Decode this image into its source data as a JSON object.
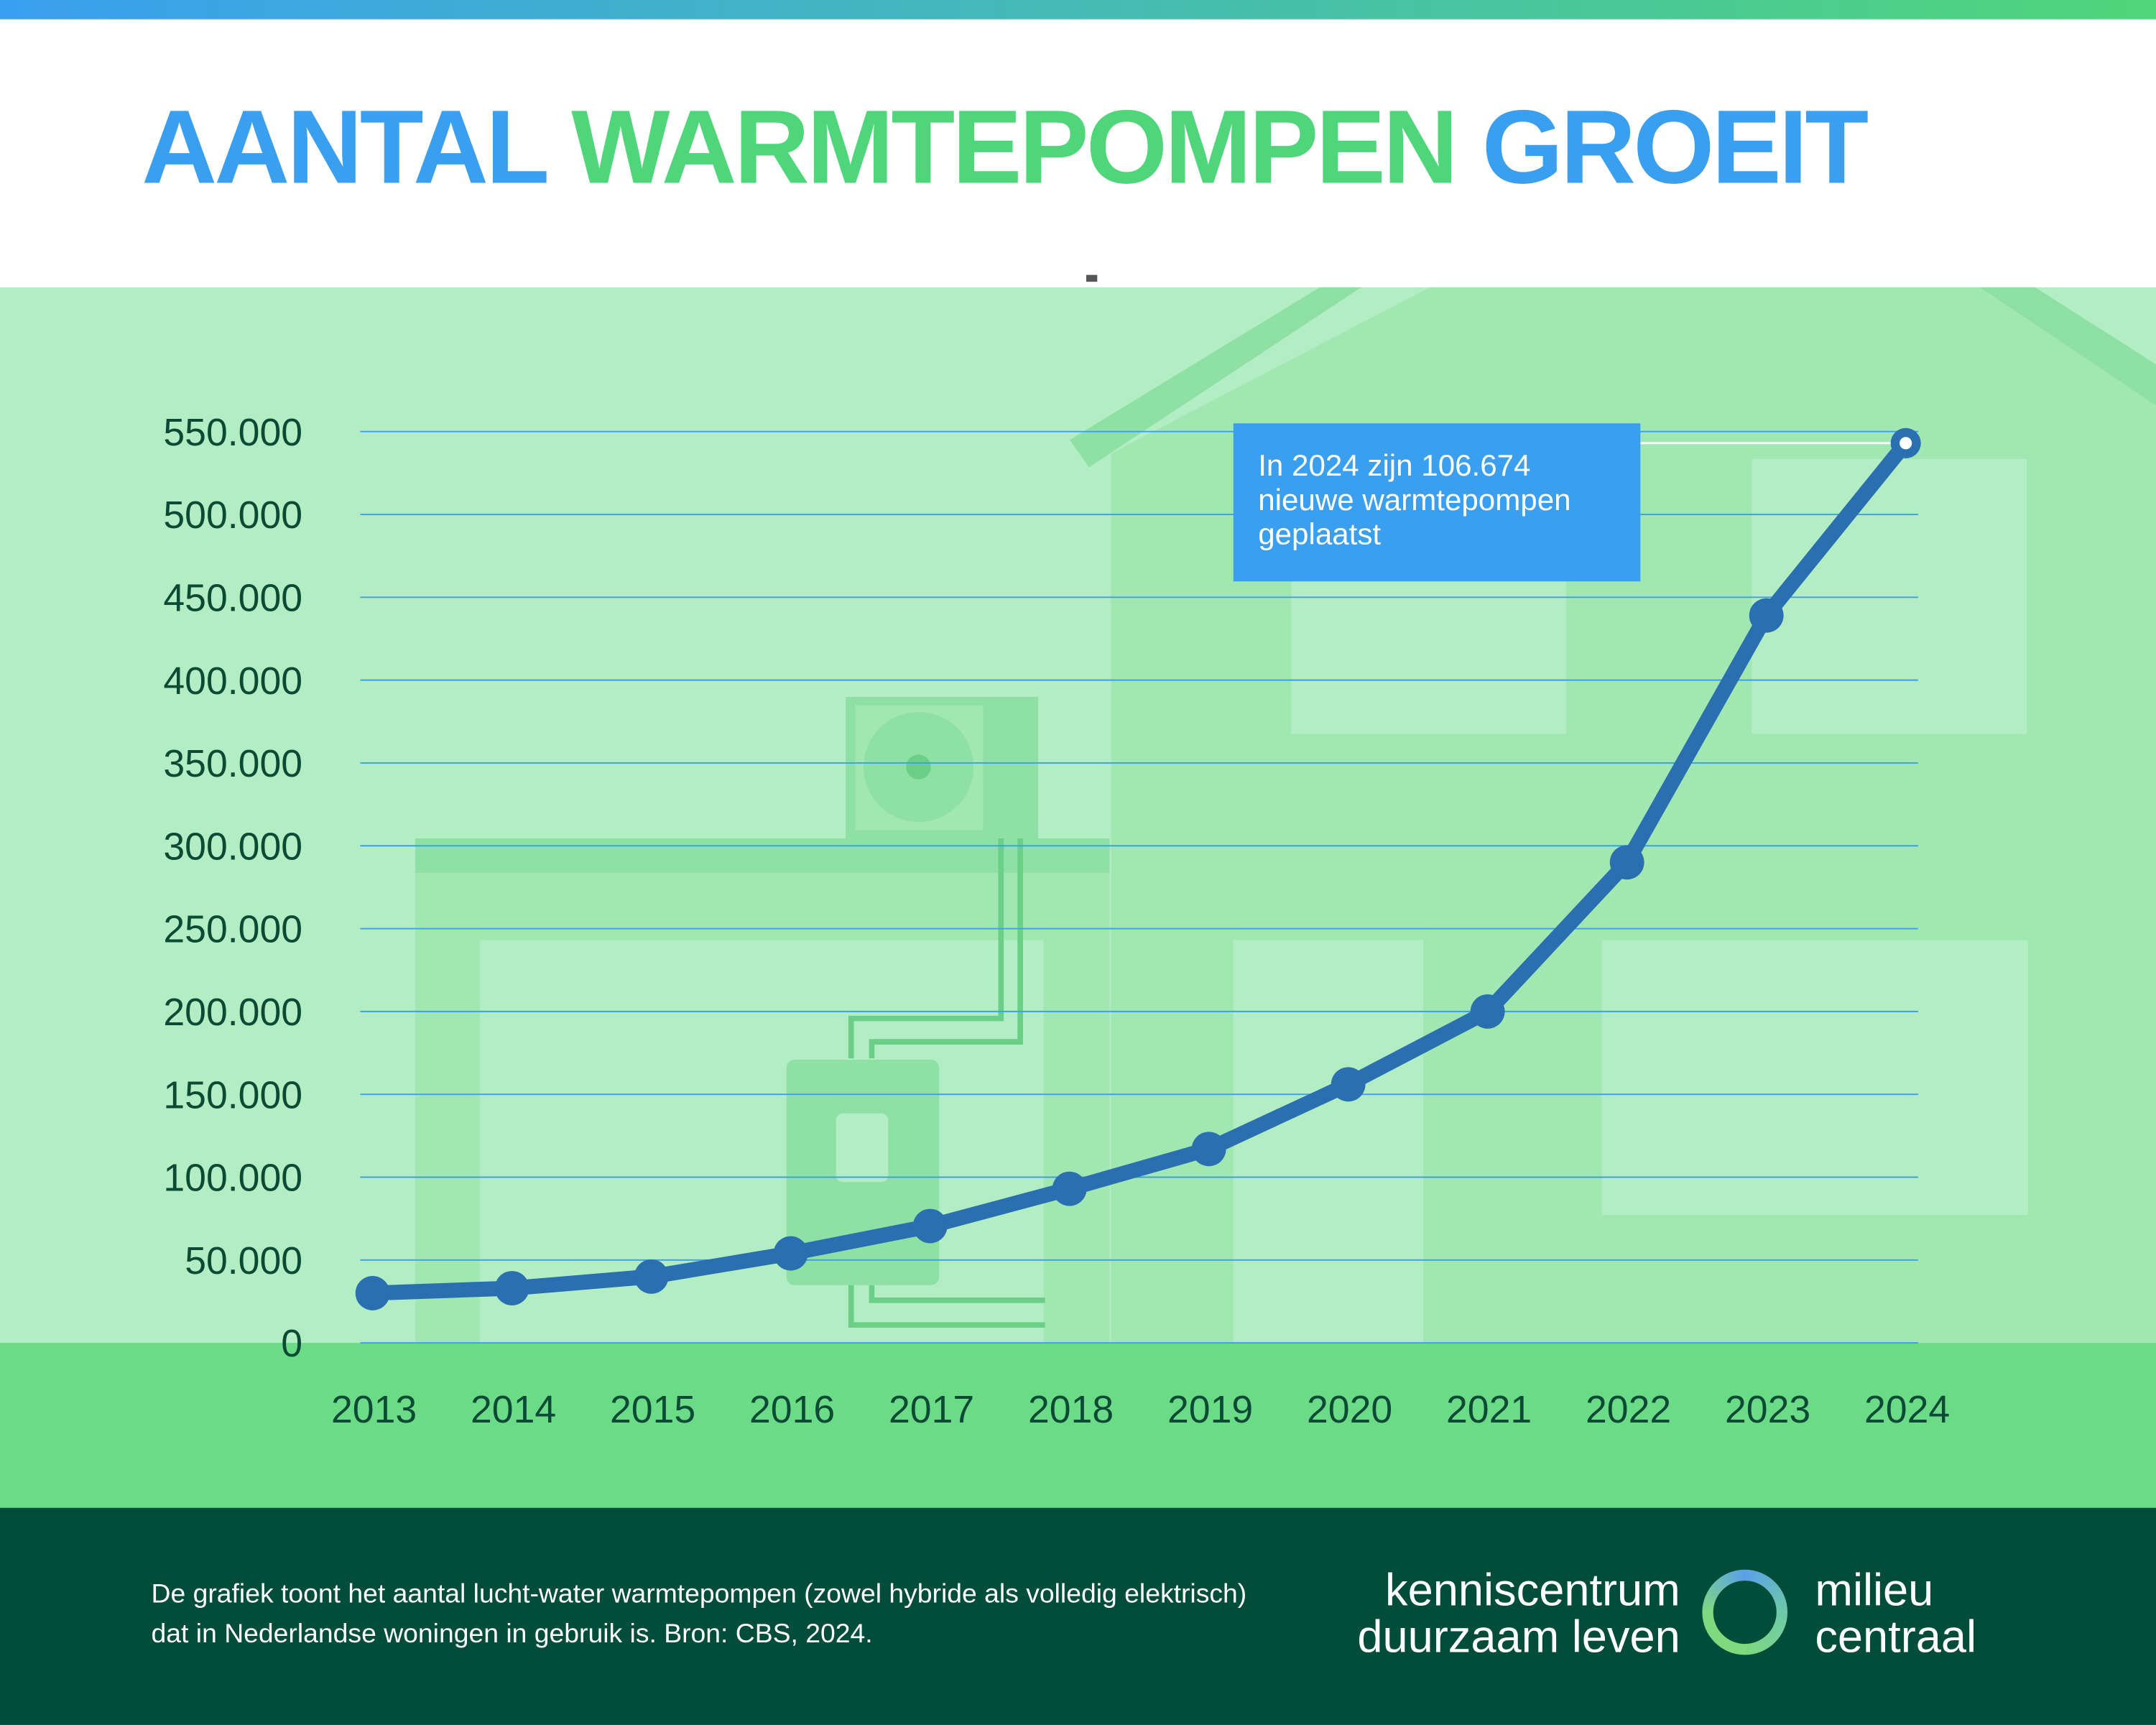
{
  "title": {
    "part1": "AANTAL",
    "part2": "WARMTEPOMPEN",
    "part3": "GROEIT"
  },
  "colors": {
    "blue": "#3b9ff0",
    "green": "#4fd67a",
    "line": "#2a6fb0",
    "footer": "#024d3a"
  },
  "callout": {
    "line1": "In 2024 zijn 106.674",
    "line2": "nieuwe warmtepompen",
    "line3": "geplaatst"
  },
  "footer": {
    "text": "De grafiek toont het aantal lucht-water warmtepompen (zowel hybride als volledig elektrisch) dat in Nederlandse woningen in gebruik is. Bron: CBS, 2024.",
    "logo_left_1": "kenniscentrum",
    "logo_left_2": "duurzaam leven",
    "logo_right_1": "milieu",
    "logo_right_2": "centraal"
  },
  "chart_data": {
    "type": "line",
    "title": "AANTAL WARMTEPOMPEN GROEIT",
    "xlabel": "",
    "ylabel": "",
    "categories": [
      "2013",
      "2014",
      "2015",
      "2016",
      "2017",
      "2018",
      "2019",
      "2020",
      "2021",
      "2022",
      "2023",
      "2024"
    ],
    "values": [
      30000,
      33000,
      40000,
      54000,
      70500,
      93000,
      117000,
      156000,
      200000,
      290000,
      439000,
      543000
    ],
    "ylim": [
      0,
      550000
    ],
    "yticks": [
      0,
      50000,
      100000,
      150000,
      200000,
      250000,
      300000,
      350000,
      400000,
      450000,
      500000,
      550000
    ],
    "ytick_labels": [
      "0",
      "50.000",
      "100.000",
      "150.000",
      "200.000",
      "250.000",
      "300.000",
      "350.000",
      "400.000",
      "450.000",
      "500.000",
      "550.000"
    ],
    "grid": true,
    "annotation": "In 2024 zijn 106.674 nieuwe warmtepompen geplaatst"
  }
}
